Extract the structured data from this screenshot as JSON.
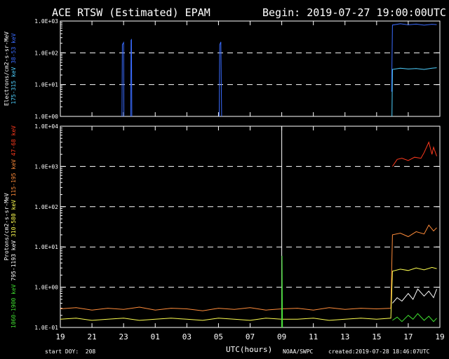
{
  "header": {
    "title": "ACE RTSW (Estimated) EPAM",
    "begin": "Begin: 2019-07-27 19:00:00UTC"
  },
  "footer": {
    "start_doy": "start DOY:  208",
    "xlabel": "UTC(hours)",
    "source": "NOAA/SWPC",
    "created": "created:2019-07-28 18:46:07UTC"
  },
  "chart_data": [
    {
      "type": "line",
      "panel": "electrons",
      "ylabel": "Electrons/cm2-s-sr-MeV",
      "yscale": "log",
      "ylim": [
        1,
        1000
      ],
      "yticks": [
        "1.0E+00",
        "1.0E+01",
        "1.0E+02",
        "1.0E+03"
      ],
      "grid": "dashed horizontal at 1.0E+01 and 1.0E+02",
      "x_ticks": [
        "19",
        "21",
        "23",
        "01",
        "03",
        "05",
        "07",
        "09",
        "11",
        "13",
        "15",
        "17",
        "19"
      ],
      "x_range_hours": [
        0,
        24
      ],
      "series": [
        {
          "name": "38-53 keV",
          "color": "#3a6cff",
          "segments": [
            {
              "x": [
                3.9,
                3.92,
                4.0,
                4.02
              ],
              "y": [
                1,
                180,
                210,
                1
              ]
            },
            {
              "x": [
                4.45,
                4.47,
                4.5,
                4.52
              ],
              "y": [
                1,
                250,
                260,
                1
              ]
            },
            {
              "x": [
                10.05,
                10.08,
                10.15,
                10.2
              ],
              "y": [
                1,
                180,
                220,
                1
              ]
            },
            {
              "x": [
                20.95,
                21.0,
                21.5,
                22.0,
                22.5,
                23.0,
                23.5,
                23.8
              ],
              "y": [
                6,
                750,
                820,
                760,
                800,
                740,
                790,
                770
              ]
            }
          ]
        },
        {
          "name": "175-315 keV",
          "color": "#4fd0ff",
          "segments": [
            {
              "x": [
                20.97,
                21.0,
                21.5,
                22.0,
                22.5,
                23.0,
                23.5,
                23.8
              ],
              "y": [
                1,
                30,
                33,
                31,
                32,
                30,
                33,
                34
              ]
            }
          ]
        }
      ]
    },
    {
      "type": "line",
      "panel": "protons",
      "ylabel": "Protons/cm2-s-sr-MeV",
      "yscale": "log",
      "ylim": [
        0.1,
        10000
      ],
      "yticks": [
        "1.0E-01",
        "1.0E+00",
        "1.0E+01",
        "1.0E+02",
        "1.0E+03",
        "1.0E+04"
      ],
      "grid": "dashed horizontal at 1.0E+00 through 1.0E+03",
      "x_ticks": [
        "19",
        "21",
        "23",
        "01",
        "03",
        "05",
        "07",
        "09",
        "11",
        "13",
        "15",
        "17",
        "19"
      ],
      "x_range_hours": [
        0,
        24
      ],
      "series": [
        {
          "name": "47-68 keV",
          "color": "#ff3a1e",
          "segments": [
            {
              "x": [
                21.0,
                21.3,
                21.6,
                22.0,
                22.4,
                22.8,
                23.0,
                23.3,
                23.5,
                23.6,
                23.8
              ],
              "y": [
                1000,
                1500,
                1600,
                1400,
                1700,
                1600,
                2200,
                4000,
                2000,
                3000,
                1800
              ]
            }
          ]
        },
        {
          "name": "115-195 keV",
          "color": "#ff8c3a",
          "segments": [
            {
              "x": [
                0,
                1,
                2,
                3,
                4,
                5,
                6,
                7,
                8,
                9,
                10,
                11,
                12,
                13,
                14,
                15,
                16,
                17,
                18,
                19,
                20,
                20.9,
                21.0,
                21.5,
                22.0,
                22.5,
                23.0,
                23.3,
                23.6,
                23.8
              ],
              "y": [
                0.29,
                0.31,
                0.27,
                0.3,
                0.28,
                0.32,
                0.27,
                0.3,
                0.29,
                0.26,
                0.3,
                0.28,
                0.31,
                0.27,
                0.29,
                0.3,
                0.27,
                0.31,
                0.28,
                0.3,
                0.29,
                0.3,
                20,
                22,
                18,
                24,
                21,
                35,
                25,
                30
              ]
            }
          ]
        },
        {
          "name": "310-580 keV",
          "color": "#ffff50",
          "segments": [
            {
              "x": [
                0,
                1,
                2,
                3,
                4,
                5,
                6,
                7,
                8,
                9,
                10,
                11,
                12,
                13,
                14,
                15,
                16,
                17,
                18,
                19,
                20,
                20.9,
                21.0,
                21.5,
                22.0,
                22.5,
                23.0,
                23.5,
                23.8
              ],
              "y": [
                0.16,
                0.17,
                0.15,
                0.16,
                0.17,
                0.15,
                0.16,
                0.17,
                0.16,
                0.15,
                0.17,
                0.16,
                0.15,
                0.17,
                0.16,
                0.16,
                0.17,
                0.15,
                0.16,
                0.17,
                0.16,
                0.17,
                2.5,
                2.8,
                2.6,
                3.0,
                2.7,
                3.1,
                2.9
              ]
            }
          ]
        },
        {
          "name": "795-1193 keV",
          "color": "#ffffff",
          "segments": [
            {
              "x": [
                21.0,
                21.3,
                21.6,
                22.0,
                22.3,
                22.6,
                23.0,
                23.3,
                23.6,
                23.8
              ],
              "y": [
                0.4,
                0.55,
                0.45,
                0.7,
                0.5,
                0.9,
                0.6,
                0.8,
                0.55,
                0.9
              ]
            },
            {
              "x": [
                14.0,
                14.0
              ],
              "y": [
                10000,
                0.1
              ]
            }
          ]
        },
        {
          "name": "1060-1900 keV",
          "color": "#40e030",
          "segments": [
            {
              "x": [
                21.0,
                21.3,
                21.6,
                22.0,
                22.3,
                22.6,
                23.0,
                23.3,
                23.6,
                23.8
              ],
              "y": [
                0.15,
                0.18,
                0.14,
                0.2,
                0.16,
                0.22,
                0.15,
                0.19,
                0.14,
                0.17
              ]
            },
            {
              "x": [
                14.0,
                14.02,
                14.05
              ],
              "y": [
                0.1,
                6,
                0.1
              ]
            }
          ]
        }
      ]
    }
  ]
}
